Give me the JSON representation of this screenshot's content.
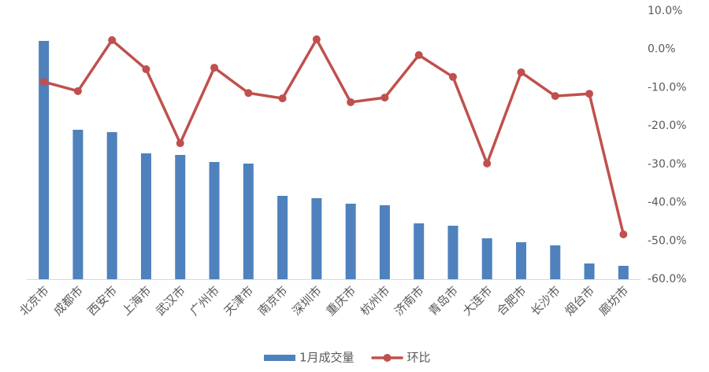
{
  "chart_data": {
    "type": "bar",
    "categories": [
      "北京市",
      "成都市",
      "西安市",
      "上海市",
      "武汉市",
      "广州市",
      "天津市",
      "南京市",
      "深圳市",
      "重庆市",
      "杭州市",
      "济南市",
      "青岛市",
      "大连市",
      "合肥市",
      "长沙市",
      "烟台市",
      "廊坊市"
    ],
    "series": [
      {
        "name": "1月成交量",
        "type": "bar",
        "color": "#4f81bd",
        "values": [
          303,
          190,
          187,
          160,
          158,
          149,
          147,
          106,
          103,
          96,
          94,
          71,
          68,
          52,
          47,
          43,
          20,
          17
        ]
      },
      {
        "name": "环比",
        "type": "line",
        "axis": "y2",
        "color": "#c0504d",
        "values": [
          -8.5,
          -10.9,
          2.4,
          -5.2,
          -24.5,
          -4.8,
          -11.4,
          -12.8,
          2.6,
          -13.8,
          -12.6,
          -1.5,
          -7.2,
          -29.8,
          -6.0,
          -12.2,
          -11.6,
          -48.3
        ]
      }
    ],
    "ylim": [
      0,
      341
    ],
    "y2lim": [
      -60,
      10
    ],
    "y2ticks": [
      {
        "value": 10,
        "label": "10.0%"
      },
      {
        "value": 0,
        "label": "0.0%"
      },
      {
        "value": -10,
        "label": "-10.0%"
      },
      {
        "value": -20,
        "label": "-20.0%"
      },
      {
        "value": -30,
        "label": "-30.0%"
      },
      {
        "value": -40,
        "label": "-40.0%"
      },
      {
        "value": -50,
        "label": "-50.0%"
      },
      {
        "value": -60,
        "label": "-60.0%"
      }
    ],
    "legend": "bottom"
  }
}
